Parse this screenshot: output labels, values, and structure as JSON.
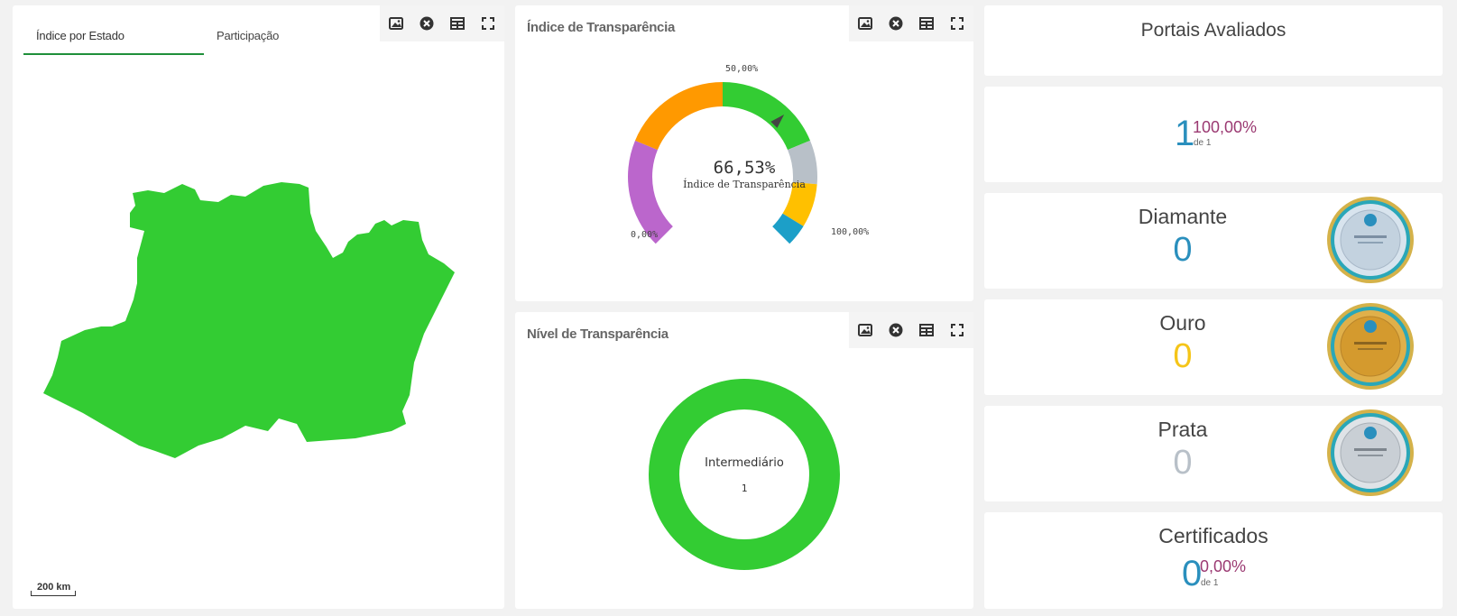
{
  "map_panel": {
    "tabs": [
      {
        "label": "Índice por Estado",
        "active": true
      },
      {
        "label": "Participação",
        "active": false
      }
    ],
    "scale_label": "200 km",
    "map_fill": "#33cc33"
  },
  "gauge_panel": {
    "title": "Índice de Transparência",
    "value_text": "66,53%",
    "subtitle": "Índice de Transparência",
    "tick_min": "0,00%",
    "tick_mid": "50,00%",
    "tick_max": "100,00%",
    "value_pct": 66.53,
    "segments": [
      {
        "from": 0,
        "to": 25,
        "color": "#bb66cc"
      },
      {
        "from": 25,
        "to": 50,
        "color": "#ff9900"
      },
      {
        "from": 50,
        "to": 75,
        "color": "#33cc33"
      },
      {
        "from": 75,
        "to": 85,
        "color": "#b8c0c8"
      },
      {
        "from": 85,
        "to": 95,
        "color": "#ffc000"
      },
      {
        "from": 95,
        "to": 100,
        "color": "#1c9fc8"
      }
    ]
  },
  "level_panel": {
    "title": "Nível de Transparência",
    "label": "Intermediário",
    "count": "1",
    "ring_color": "#33cc33"
  },
  "toolbar_icons": [
    "image-icon",
    "close-circle-icon",
    "table-icon",
    "fullscreen-icon"
  ],
  "right_column": {
    "portais_title": "Portais Avaliados",
    "portais": {
      "count": "1",
      "pct": "100,00%",
      "de": "de 1"
    },
    "diamante": {
      "label": "Diamante",
      "count": "0",
      "color": "#2a8fbd"
    },
    "ouro": {
      "label": "Ouro",
      "count": "0",
      "color": "#f5c518"
    },
    "prata": {
      "label": "Prata",
      "count": "0",
      "color": "#b8c0c8"
    },
    "certificados": {
      "label": "Certificados",
      "count": "0",
      "pct": "0,00%",
      "de": "de 1"
    }
  }
}
